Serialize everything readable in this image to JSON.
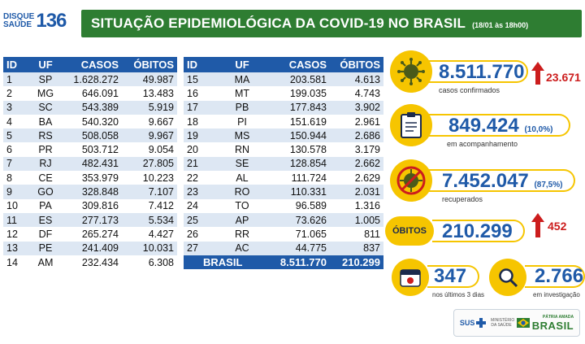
{
  "logo": {
    "line1": "DISQUE",
    "line2": "SAÚDE",
    "number": "136"
  },
  "banner": {
    "title": "SITUAÇÃO EPIDEMIOLÓGICA DA COVID-19 NO BRASIL",
    "date": "(18/01 às 18h00)"
  },
  "table_headers": [
    "ID",
    "UF",
    "CASOS",
    "ÓBITOS"
  ],
  "left_rows": [
    [
      "1",
      "SP",
      "1.628.272",
      "49.987"
    ],
    [
      "2",
      "MG",
      "646.091",
      "13.483"
    ],
    [
      "3",
      "SC",
      "543.389",
      "5.919"
    ],
    [
      "4",
      "BA",
      "540.320",
      "9.667"
    ],
    [
      "5",
      "RS",
      "508.058",
      "9.967"
    ],
    [
      "6",
      "PR",
      "503.712",
      "9.054"
    ],
    [
      "7",
      "RJ",
      "482.431",
      "27.805"
    ],
    [
      "8",
      "CE",
      "353.979",
      "10.223"
    ],
    [
      "9",
      "GO",
      "328.848",
      "7.107"
    ],
    [
      "10",
      "PA",
      "309.816",
      "7.412"
    ],
    [
      "11",
      "ES",
      "277.173",
      "5.534"
    ],
    [
      "12",
      "DF",
      "265.274",
      "4.427"
    ],
    [
      "13",
      "PE",
      "241.409",
      "10.031"
    ],
    [
      "14",
      "AM",
      "232.434",
      "6.308"
    ]
  ],
  "right_rows": [
    [
      "15",
      "MA",
      "203.581",
      "4.613"
    ],
    [
      "16",
      "MT",
      "199.035",
      "4.743"
    ],
    [
      "17",
      "PB",
      "177.843",
      "3.902"
    ],
    [
      "18",
      "PI",
      "151.619",
      "2.961"
    ],
    [
      "19",
      "MS",
      "150.944",
      "2.686"
    ],
    [
      "20",
      "RN",
      "130.578",
      "3.179"
    ],
    [
      "21",
      "SE",
      "128.854",
      "2.662"
    ],
    [
      "22",
      "AL",
      "111.724",
      "2.629"
    ],
    [
      "23",
      "RO",
      "110.331",
      "2.031"
    ],
    [
      "24",
      "TO",
      "96.589",
      "1.316"
    ],
    [
      "25",
      "AP",
      "73.626",
      "1.005"
    ],
    [
      "26",
      "RR",
      "71.065",
      "811"
    ],
    [
      "27",
      "AC",
      "44.775",
      "837"
    ]
  ],
  "total_row": {
    "label": "BRASIL",
    "casos": "8.511.770",
    "obitos": "210.299"
  },
  "stats": {
    "confirmed": {
      "value": "8.511.770",
      "delta": "23.671",
      "label": "casos confirmados"
    },
    "monitoring": {
      "value": "849.424",
      "pct": "(10,0%)",
      "label": "em acompanhamento"
    },
    "recovered": {
      "value": "7.452.047",
      "pct": "(87,5%)",
      "label": "recuperados"
    },
    "deaths": {
      "badge": "ÓBITOS",
      "value": "210.299",
      "delta": "452"
    },
    "last3": {
      "value": "347",
      "label": "nos últimos 3 dias"
    },
    "investigation": {
      "value": "2.766",
      "label": "em investigação"
    }
  },
  "footer": {
    "sus": "SUS",
    "ministry": "MINISTÉRIO DA SAÚDE",
    "patria": "PÁTRIA AMADA",
    "brasil": "BRASIL"
  },
  "colors": {
    "blue": "#1f5aa8",
    "green": "#2e7d32",
    "yellow": "#f6c500",
    "red": "#cc1d1d",
    "row_alt": "#dde7f3"
  }
}
